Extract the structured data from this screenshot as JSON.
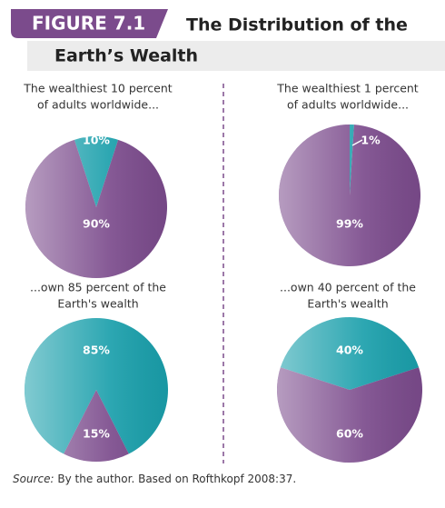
{
  "figure": {
    "label": "FIGURE 7.1",
    "title_lines": [
      "The Distribution of the",
      "Earth’s Wealth"
    ]
  },
  "chart_data": [
    {
      "type": "pie",
      "title": [
        "The wealthiest 10 percent",
        "of adults worldwide..."
      ],
      "values": [
        10,
        90
      ],
      "value_labels": [
        "10%",
        "90%"
      ],
      "colors": [
        "#1a9fab",
        "#7b4b8c"
      ]
    },
    {
      "type": "pie",
      "title": [
        "The wealthiest 1 percent",
        "of adults worldwide..."
      ],
      "values": [
        1,
        99
      ],
      "value_labels": [
        "1%",
        "99%"
      ],
      "colors": [
        "#1a9fab",
        "#7b4b8c"
      ]
    },
    {
      "type": "pie",
      "title": [
        "...own 85 percent of the",
        "Earth's wealth"
      ],
      "values": [
        85,
        15
      ],
      "value_labels": [
        "85%",
        "15%"
      ],
      "colors": [
        "#1a9fab",
        "#7b4b8c"
      ]
    },
    {
      "type": "pie",
      "title": [
        "...own 40 percent of the",
        "Earth's wealth"
      ],
      "values": [
        40,
        60
      ],
      "value_labels": [
        "40%",
        "60%"
      ],
      "colors": [
        "#1a9fab",
        "#7b4b8c"
      ]
    }
  ],
  "source": {
    "label": "Source:",
    "text": "By the author. Based on Rofthkopf 2008:37."
  }
}
